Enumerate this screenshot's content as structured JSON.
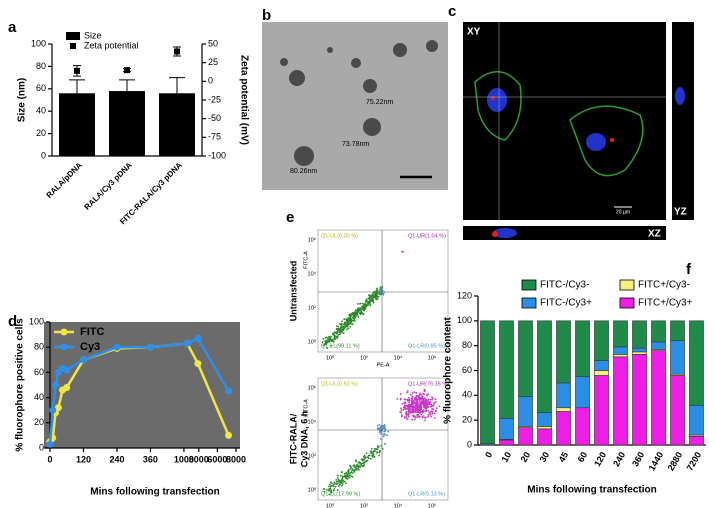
{
  "panel_labels": [
    "a",
    "b",
    "c",
    "d",
    "e",
    "f"
  ],
  "chart_data": [
    {
      "type": "bar",
      "categories": [
        "RALA/pDNA",
        "RALA/Cy3 pDNA",
        "FITC-RALA/Cy3 pDNA"
      ],
      "series": [
        {
          "name": "Size",
          "color": "#000000",
          "values": [
            56,
            58,
            56
          ],
          "errors": [
            12,
            10,
            14
          ]
        },
        {
          "name": "Zeta potential",
          "color": "#000000",
          "axis": "y2",
          "values": [
            14,
            15,
            40
          ],
          "errors": [
            7,
            2,
            6
          ]
        }
      ],
      "ylabel": "Size (nm)",
      "ylim": [
        0,
        100
      ],
      "yticks": [
        0,
        20,
        40,
        60,
        80,
        100
      ],
      "y2label": "Zeta potential (mV)",
      "y2lim": [
        -100,
        50
      ],
      "y2ticks": [
        50,
        25,
        0,
        -25,
        -50,
        -75,
        -100
      ],
      "legend": "top-left"
    },
    {
      "type": "line",
      "x": [
        0,
        10,
        20,
        30,
        45,
        60,
        120,
        240,
        360,
        1440,
        2880,
        7200
      ],
      "series": [
        {
          "name": "FITC",
          "color": "#f2e642",
          "values": [
            5,
            8,
            28,
            32,
            46,
            48,
            70,
            79,
            80,
            83,
            67,
            10
          ]
        },
        {
          "name": "Cy3",
          "color": "#2f8fe6",
          "values": [
            3,
            30,
            50,
            60,
            63,
            62,
            70,
            80,
            80,
            83,
            87,
            45
          ]
        }
      ],
      "xlabel": "Mins following transfection",
      "ylabel": "% fluorophore positive cells",
      "xlim": [
        0,
        8000
      ],
      "xticks": [
        0,
        120,
        240,
        360,
        1000,
        3000,
        6000,
        8000
      ],
      "ylim": [
        0,
        100
      ],
      "yticks": [
        0,
        20,
        40,
        60,
        80,
        100
      ],
      "plot_background": "#6b6b6b",
      "legend": "top-left"
    },
    {
      "type": "stacked_bar",
      "categories": [
        "0",
        "10",
        "20",
        "30",
        "45",
        "60",
        "120",
        "240",
        "360",
        "1440",
        "2880",
        "7200"
      ],
      "series": [
        {
          "name": "FITC+/Cy3+",
          "color": "#ee1ee6",
          "values": [
            0,
            4,
            14,
            13,
            27,
            30,
            56,
            71,
            73,
            76,
            56,
            7
          ]
        },
        {
          "name": "FITC+/Cy3-",
          "color": "#f5f07a",
          "values": [
            0,
            0.5,
            1,
            2,
            3,
            0,
            4,
            2,
            2,
            1,
            1,
            1
          ]
        },
        {
          "name": "FITC-/Cy3+",
          "color": "#2b8ee6",
          "values": [
            1,
            17,
            24,
            11,
            20,
            25,
            8,
            6,
            3,
            6,
            27,
            24
          ]
        },
        {
          "name": "FITC-/Cy3-",
          "color": "#1f8a4a",
          "values": [
            99,
            78.5,
            61,
            74,
            50,
            45,
            32,
            21,
            22,
            17,
            16,
            68
          ]
        }
      ],
      "xlabel": "Mins following transfection",
      "ylabel": "% fluorophore content",
      "ylim": [
        0,
        120
      ],
      "yticks": [
        0,
        20,
        40,
        60,
        80,
        100,
        120
      ],
      "legend": "top"
    }
  ],
  "tem_image": {
    "size_labels": [
      "75.22nm",
      "73.78nm",
      "80.26nm"
    ]
  },
  "confocal_image": {
    "views": [
      "XY",
      "YZ",
      "XZ"
    ],
    "scale_label": "20 µm"
  },
  "flow_cytometry": {
    "y_label": "FITC-A",
    "x_label": "PE-A",
    "axis_ticks": [
      "10⁰",
      "10²",
      "10⁴",
      "10⁶"
    ],
    "plots": [
      {
        "label": [
          "Untransfected"
        ],
        "quadrants": [
          "Q1-UL(0.00 %)",
          "Q1-UR(1.04 %)",
          "Q1-LL(98.11 %)",
          "Q1-LR(0.85 %)"
        ]
      },
      {
        "label": [
          "FITC-RALA/",
          "Cy3 DNA, 6 h"
        ],
        "quadrants": [
          "Q1-UL(0.53 %)",
          "Q1-UR(76.35 %)",
          "Q1-LL(17.99 %)",
          "Q1-LR(5.13 %)"
        ]
      }
    ]
  }
}
